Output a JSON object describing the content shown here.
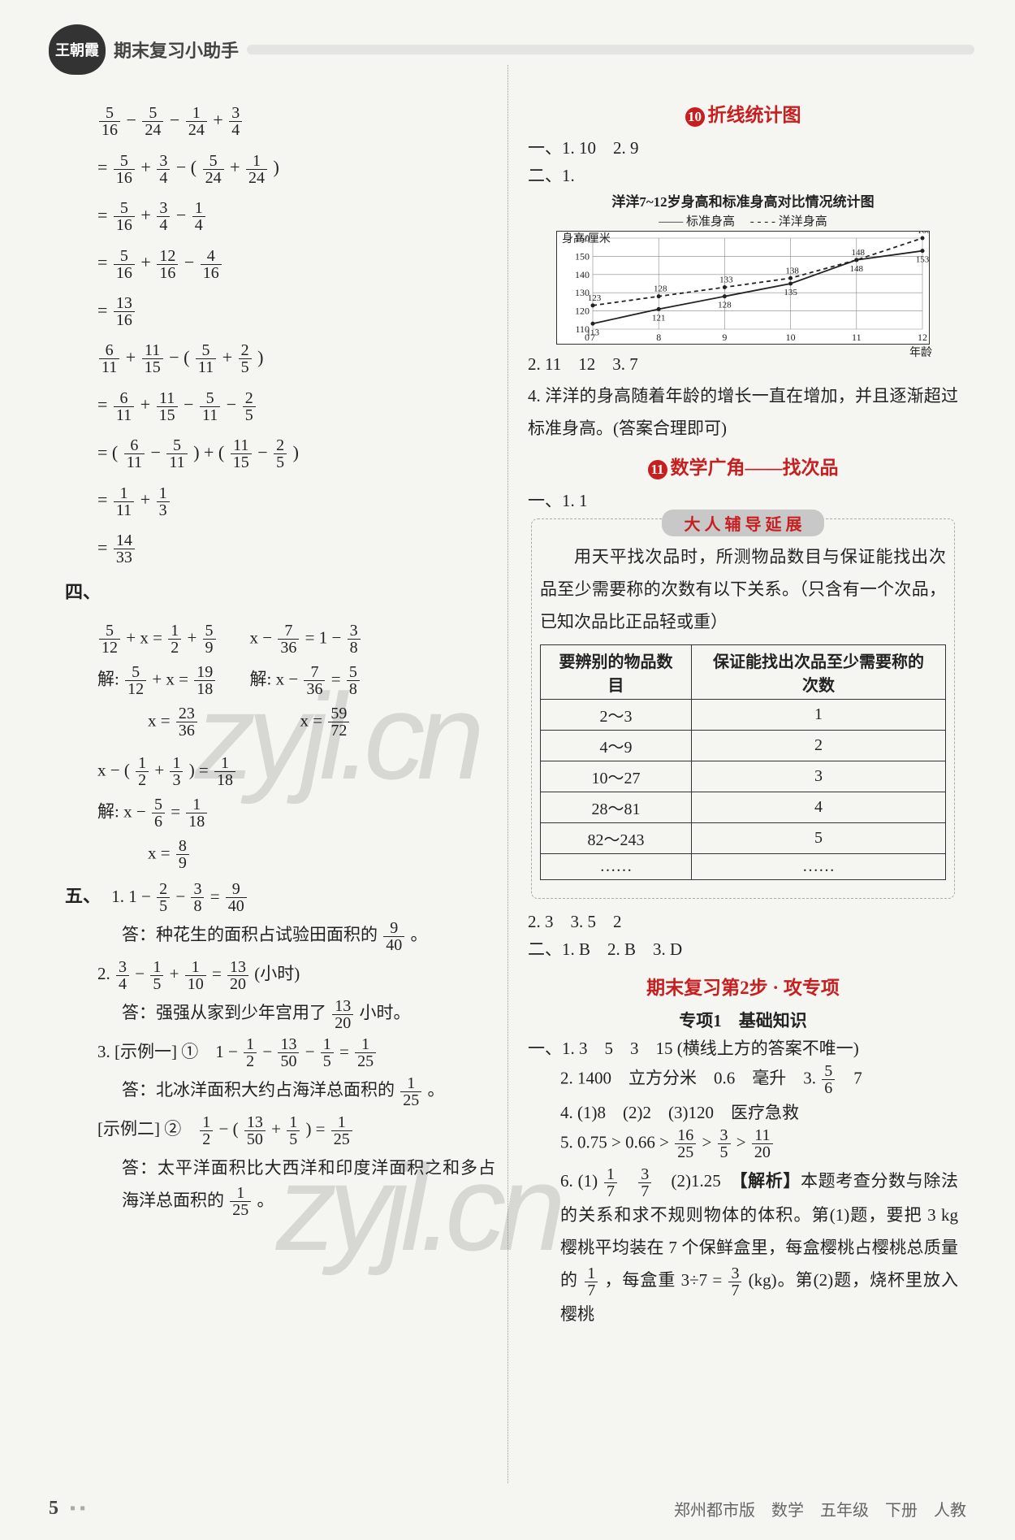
{
  "header": {
    "badge": "王朝霞",
    "title": "期末复习小助手"
  },
  "left": {
    "block1": [
      "5/16 − 5/24 − 1/24 + 3/4",
      "= 5/16 + 3/4 − ( 5/24 + 1/24 )",
      "= 5/16 + 3/4 − 1/4",
      "= 5/16 + 12/16 − 4/16",
      "= 13/16"
    ],
    "block2": [
      "6/11 + 11/15 − ( 5/11 + 2/5 )",
      "= 6/11 + 11/15 − 5/11 − 2/5",
      "= ( 6/11 − 5/11 ) + ( 11/15 − 2/5 )",
      "= 1/11 + 1/3",
      "= 14/33"
    ],
    "four_label": "四、",
    "four_eq1": {
      "lhs": "5/12 + x = 1/2 + 5/9",
      "s1": "解: 5/12 + x = 19/18",
      "s2": "x = 23/36"
    },
    "four_eq2": {
      "lhs": "x − 7/36 = 1 − 3/8",
      "s1": "解: x − 7/36 = 5/8",
      "s2": "x = 59/72"
    },
    "four_eq3": {
      "lhs": "x − ( 1/2 + 1/3 ) = 1/18",
      "s1": "解: x − 5/6 = 1/18",
      "s2": "x = 8/9"
    },
    "five_label": "五、",
    "five_1": {
      "expr": "1. 1 − 2/5 − 3/8 = 9/40",
      "ans": "答：种花生的面积占试验田面积的 9/40 。"
    },
    "five_2": {
      "expr": "2. 3/4 − 1/5 + 1/10 = 13/20 (小时)",
      "ans": "答：强强从家到少年宫用了 13/20 小时。"
    },
    "five_3a": {
      "label": "3. [示例一] ①",
      "expr": "1 − 1/2 − 13/50 − 1/5 = 1/25",
      "ans": "答：北冰洋面积大约占海洋总面积的 1/25 。"
    },
    "five_3b": {
      "label": "[示例二] ②",
      "expr": "1/2 − ( 13/50 + 1/5 ) = 1/25",
      "ans": "答：太平洋面积比大西洋和印度洋面积之和多占海洋总面积的 1/25 。"
    }
  },
  "right": {
    "sec10_title": "折线统计图",
    "sec10_num": "⓾",
    "ans_10_1": "一、1. 10　2. 9",
    "ans_10_2_label": "二、1.",
    "chart": {
      "title": "洋洋7~12岁身高和标准身高对比情况统计图",
      "legend_left": "标准身高",
      "legend_right": "洋洋身高",
      "y_label": "身高/厘米",
      "x_label": "年龄",
      "x": [
        7,
        8,
        9,
        10,
        11,
        12
      ],
      "y_ticks": [
        110,
        120,
        130,
        140,
        150,
        160
      ],
      "series_standard": [
        113,
        121,
        128,
        135,
        148,
        153
      ],
      "series_yang": [
        123,
        128,
        133,
        138,
        148,
        160
      ],
      "extra_label": "160",
      "colors": {
        "grid": "#888",
        "line1": "#222",
        "line2": "#222",
        "bg": "#ffffff"
      }
    },
    "ans_10_rest": [
      "2. 11　12　3. 7",
      "4. 洋洋的身高随着年龄的增长一直在增加，并且逐渐超过标准身高。(答案合理即可)"
    ],
    "sec11_num": "⓫",
    "sec11_title": "数学广角——找次品",
    "ans_11_1": "一、1. 1",
    "yanzhan_title": "大 人 辅 导 延 展",
    "yanzhan_text": "用天平找次品时，所测物品数目与保证能找出次品至少需要称的次数有以下关系。（只含有一个次品，已知次品比正品轻或重）",
    "table_headers": [
      "要辨别的物品数目",
      "保证能找出次品至少需要称的次数"
    ],
    "table_rows": [
      [
        "2～3",
        "1"
      ],
      [
        "4～9",
        "2"
      ],
      [
        "10～27",
        "3"
      ],
      [
        "28～81",
        "4"
      ],
      [
        "82～243",
        "5"
      ],
      [
        "……",
        "……"
      ]
    ],
    "ans_11_rest": "2. 3　3. 5　2",
    "ans_11_two": "二、1. B　2. B　3. D",
    "step2_title": "期末复习第2步 · 攻专项",
    "step2_sub": "专项1　基础知识",
    "step2_lines": [
      "一、1. 3　5　3　15 (横线上方的答案不唯一)",
      "2. 1400　立方分米　0.6　毫升　3. 5/6　7",
      "4. (1)8　(2)2　(3)120　医疗急救",
      "5. 0.75 > 0.66 > 16/25 > 3/5 > 11/20"
    ],
    "step2_6": {
      "lead": "6. (1) 1/7　3/7　(2)1.25　",
      "tag": "【解析】",
      "text": "本题考查分数与除法的关系和求不规则物体的体积。第(1)题，要把 3 kg 樱桃平均装在 7 个保鲜盒里，每盒樱桃占樱桃总质量的 1/7 ，每盒重 3÷7 = 3/7 (kg)。第(2)题，烧杯里放入樱桃"
    }
  },
  "footer": {
    "page": "5",
    "text": "郑州都市版　数学　五年级　下册　人教"
  },
  "watermark": "zyjl.cn"
}
